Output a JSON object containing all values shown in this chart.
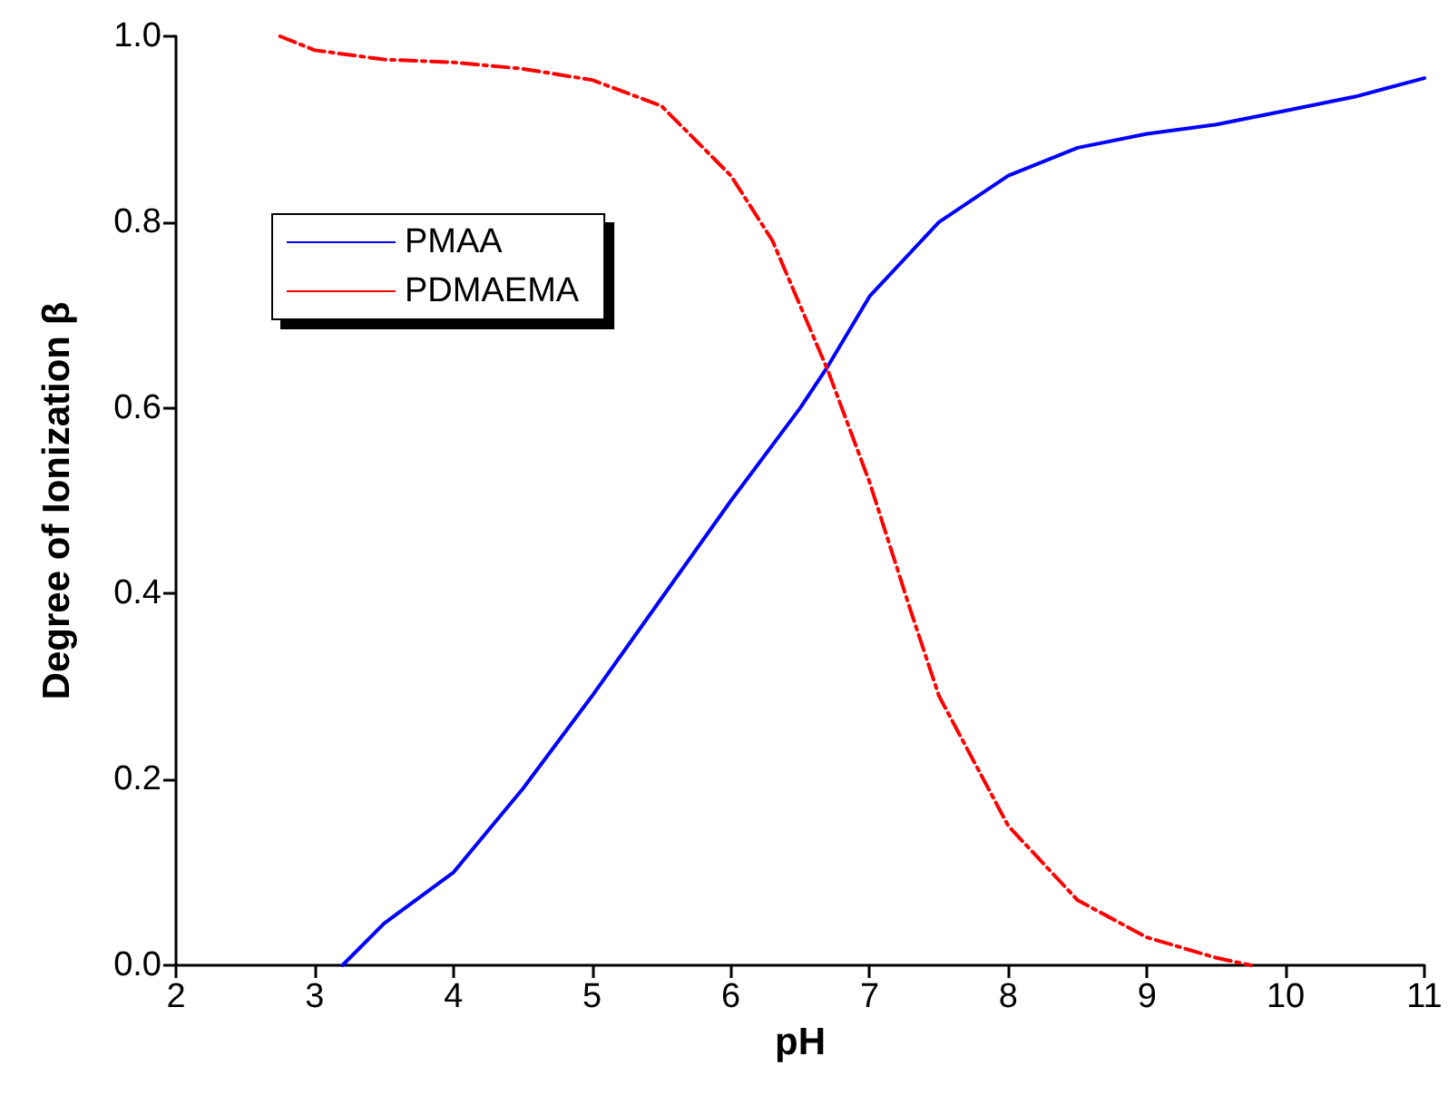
{
  "chart_data": {
    "type": "line",
    "xlabel": "pH",
    "ylabel": "Degree of Ionization β",
    "xlim": [
      2,
      11
    ],
    "xticks": [
      2,
      3,
      4,
      5,
      6,
      7,
      8,
      9,
      10,
      11
    ],
    "ylim": [
      0,
      1
    ],
    "yticks": [
      {
        "value": 0,
        "label": "0.0"
      },
      0.2,
      0.4,
      0.6,
      0.8,
      {
        "value": 1,
        "label": "1.0"
      }
    ],
    "grid": false,
    "legend": "top left",
    "marker": "none",
    "series": [
      {
        "name": "PMAA",
        "color": "#0000ff",
        "line_style": "solid",
        "x": [
          3.2,
          3.5,
          4,
          4.5,
          5,
          5.5,
          6,
          6.5,
          6.7,
          7,
          7.5,
          8,
          8.5,
          9,
          9.5,
          10,
          10.5,
          11
        ],
        "values": [
          0,
          0.045,
          0.1,
          0.19,
          0.29,
          0.395,
          0.5,
          0.6,
          0.645,
          0.72,
          0.8,
          0.85,
          0.88,
          0.895,
          0.905,
          0.92,
          0.935,
          0.955
        ]
      },
      {
        "name": "PDMAEMA",
        "color": "#ff0000",
        "line_style": "dashed",
        "x": [
          2.75,
          3,
          3.5,
          4,
          4.5,
          5,
          5.5,
          6,
          6.3,
          6.7,
          7,
          7.3,
          7.5,
          8,
          8.5,
          9,
          9.5,
          9.75
        ],
        "values": [
          1,
          0.985,
          0.975,
          0.972,
          0.965,
          0.953,
          0.925,
          0.85,
          0.78,
          0.64,
          0.52,
          0.38,
          0.29,
          0.15,
          0.07,
          0.03,
          0.008,
          0
        ]
      }
    ]
  }
}
